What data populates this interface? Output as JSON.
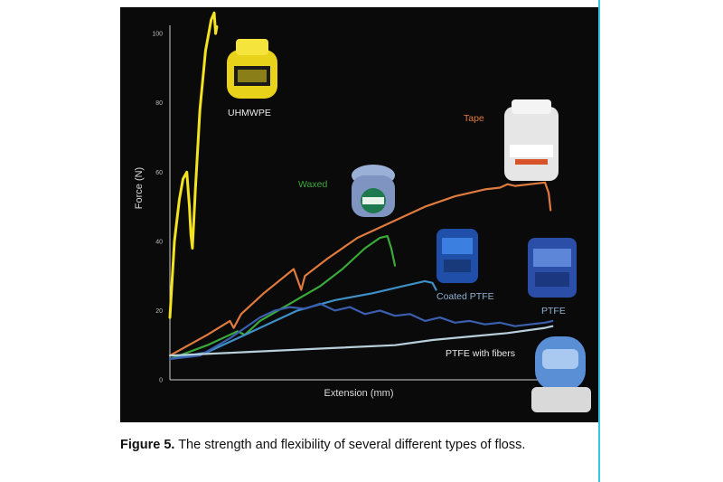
{
  "caption": {
    "figure_label": "Figure 5.",
    "text": " The strength and flexibility of several different types of floss."
  },
  "colors": {
    "panel_background": "#0a0a0a",
    "accent_rule": "#35c6e6",
    "UHMWPE": "#f2e21f",
    "Tape": "#e07a3f",
    "Waxed": "#3aaa3a",
    "Coated PTFE": "#3f8fc9",
    "PTFE": "#3a5fae",
    "PTFE with fibers": "#b8d0dc"
  },
  "product_icons": [
    "uhmwpe-dispenser-icon",
    "tape-dispenser-icon",
    "waxed-dispenser-icon",
    "coated-ptfe-dispenser-icon",
    "ptfe-dispenser-icon",
    "ptfe-with-fibers-dispenser-icon"
  ],
  "chart_data": {
    "type": "line",
    "title": "",
    "xlabel": "Extension (mm)",
    "ylabel": "Force (N)",
    "yticks": [
      "0",
      "20",
      "40",
      "60",
      "80",
      "100"
    ],
    "ylim": [
      0,
      105
    ],
    "xlim": [
      0,
      100
    ],
    "grid": false,
    "legend": "labels placed beside curves",
    "series": [
      {
        "name": "UHMWPE",
        "label_color": "#e8e8e8",
        "x": [
          0,
          1.2,
          2.5,
          3.5,
          4.5,
          5.2,
          5.6,
          6.0,
          6.8,
          8.0,
          9.5,
          11.0,
          11.8,
          12.2,
          12.5
        ],
        "y": [
          18,
          40,
          52,
          58,
          60,
          50,
          42,
          38,
          55,
          78,
          95,
          104,
          106,
          100,
          102
        ]
      },
      {
        "name": "Tape",
        "label_color": "#e07a3f",
        "x": [
          0,
          10,
          16,
          17,
          19,
          25,
          33,
          35,
          36,
          42,
          50,
          60,
          68,
          76,
          84,
          88,
          90,
          92,
          100,
          101,
          101.5
        ],
        "y": [
          7,
          13,
          17,
          15,
          19,
          25,
          32,
          26,
          30,
          35,
          41,
          46,
          50,
          53,
          55,
          55.5,
          56.5,
          56,
          57,
          54,
          49
        ]
      },
      {
        "name": "Waxed",
        "label_color": "#3aaa3a",
        "x": [
          0,
          10,
          18,
          20,
          24,
          32,
          40,
          46,
          52,
          56,
          58,
          59,
          60
        ],
        "y": [
          6,
          10,
          14,
          13,
          17,
          22,
          27,
          32,
          38,
          41,
          41.5,
          38,
          33
        ]
      },
      {
        "name": "Coated PTFE",
        "label_color": "#8fb2d2",
        "x": [
          0,
          10,
          18,
          26,
          34,
          44,
          54,
          62,
          68,
          70,
          71
        ],
        "y": [
          6,
          8,
          12,
          16,
          20,
          23,
          25,
          27,
          28.5,
          28,
          26
        ]
      },
      {
        "name": "PTFE",
        "label_color": "#8fb2d2",
        "x": [
          0,
          8,
          16,
          24,
          28,
          32,
          36,
          40,
          44,
          48,
          52,
          56,
          60,
          64,
          68,
          72,
          76,
          80,
          84,
          88,
          92,
          96,
          100,
          102
        ],
        "y": [
          6,
          7,
          12,
          18,
          20,
          21,
          20.5,
          22,
          20,
          21,
          19,
          20,
          18.5,
          19,
          17,
          18,
          16.5,
          17,
          16,
          16.5,
          15.5,
          16,
          16.5,
          17
        ]
      },
      {
        "name": "PTFE with fibers",
        "label_color": "#e8e8e8",
        "x": [
          0,
          20,
          40,
          60,
          70,
          80,
          90,
          100,
          102
        ],
        "y": [
          7,
          8,
          9,
          10,
          11.5,
          12.5,
          13.5,
          15,
          15.5
        ]
      }
    ]
  }
}
